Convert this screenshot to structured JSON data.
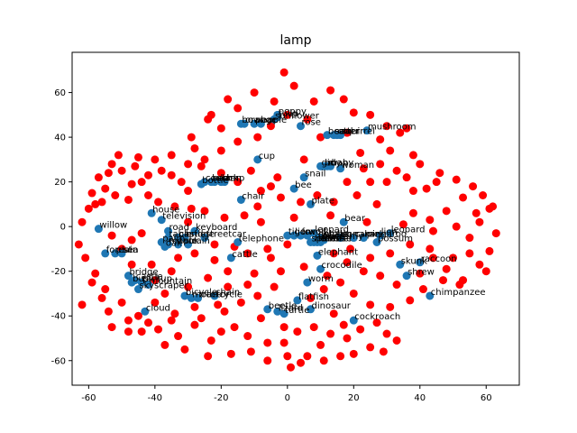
{
  "chart_data": {
    "type": "scatter",
    "title": "lamp",
    "xlabel": "",
    "ylabel": "",
    "xlim": [
      -65,
      70
    ],
    "ylim": [
      -71,
      78
    ],
    "xticks": [
      -60,
      -40,
      -20,
      0,
      20,
      40,
      60
    ],
    "yticks": [
      -60,
      -40,
      -20,
      0,
      20,
      40,
      60
    ],
    "grid": false,
    "colors": {
      "labeled": "#1f77b4",
      "unlabeled": "#ff0000"
    },
    "labeled_points": [
      {
        "label": "mushroom",
        "x": 24,
        "y": 43
      },
      {
        "label": "sunflower",
        "x": -4,
        "y": 48
      },
      {
        "label": "poppy",
        "x": -3,
        "y": 50
      },
      {
        "label": "tulip",
        "x": -3,
        "y": 49
      },
      {
        "label": "rose",
        "x": 4,
        "y": 45
      },
      {
        "label": "bowl",
        "x": -14,
        "y": 46
      },
      {
        "label": "orange",
        "x": -13,
        "y": 46
      },
      {
        "label": "pear",
        "x": -10,
        "y": 46
      },
      {
        "label": "apple",
        "x": -8,
        "y": 46
      },
      {
        "label": "beaver",
        "x": 12,
        "y": 41
      },
      {
        "label": "seal",
        "x": 14,
        "y": 41
      },
      {
        "label": "otter",
        "x": 15,
        "y": 41
      },
      {
        "label": "squirrel",
        "x": 16,
        "y": 41
      },
      {
        "label": "cup",
        "x": -9,
        "y": 30
      },
      {
        "label": "girl",
        "x": 10,
        "y": 27
      },
      {
        "label": "boy",
        "x": 11,
        "y": 27
      },
      {
        "label": "man",
        "x": 12,
        "y": 27
      },
      {
        "label": "baby",
        "x": 13,
        "y": 27
      },
      {
        "label": "woman",
        "x": 16,
        "y": 26
      },
      {
        "label": "snail",
        "x": 5,
        "y": 22
      },
      {
        "label": "bee",
        "x": 2,
        "y": 17
      },
      {
        "label": "bottle",
        "x": -26,
        "y": 19
      },
      {
        "label": "couch",
        "x": -25,
        "y": 20
      },
      {
        "label": "bed",
        "x": -23,
        "y": 20
      },
      {
        "label": "clock",
        "x": -22,
        "y": 20
      },
      {
        "label": "lamp",
        "x": -20,
        "y": 20
      },
      {
        "label": "can",
        "x": -19,
        "y": 20
      },
      {
        "label": "chair",
        "x": -14,
        "y": 12
      },
      {
        "label": "plate",
        "x": 7,
        "y": 10
      },
      {
        "label": "house",
        "x": -41,
        "y": 6
      },
      {
        "label": "television",
        "x": -38,
        "y": 3
      },
      {
        "label": "willow",
        "x": -57,
        "y": -1
      },
      {
        "label": "road",
        "x": -36,
        "y": -2
      },
      {
        "label": "keyboard",
        "x": -28,
        "y": -2
      },
      {
        "label": "table",
        "x": -36,
        "y": -5
      },
      {
        "label": "castle",
        "x": -33,
        "y": -5
      },
      {
        "label": "bridge",
        "x": -31,
        "y": -5
      },
      {
        "label": "streetcar",
        "x": -25,
        "y": -5
      },
      {
        "label": "palm",
        "x": -38,
        "y": -7
      },
      {
        "label": "maple",
        "x": -36,
        "y": -8
      },
      {
        "label": "oak",
        "x": -37,
        "y": -9
      },
      {
        "label": "tank",
        "x": -33,
        "y": -8
      },
      {
        "label": "train",
        "x": -30,
        "y": -8
      },
      {
        "label": "telephone",
        "x": -15,
        "y": -7
      },
      {
        "label": "tiger",
        "x": 0,
        "y": -4
      },
      {
        "label": "lion",
        "x": 2,
        "y": -4
      },
      {
        "label": "fox",
        "x": 4,
        "y": -4
      },
      {
        "label": "wolf",
        "x": 6,
        "y": -4
      },
      {
        "label": "leopard",
        "x": 8,
        "y": -3
      },
      {
        "label": "dolphin",
        "x": 9,
        "y": -5
      },
      {
        "label": "shark",
        "x": 9,
        "y": -6
      },
      {
        "label": "whale",
        "x": 10,
        "y": -5
      },
      {
        "label": "butterfly",
        "x": 11,
        "y": -6
      },
      {
        "label": "spider",
        "x": 7,
        "y": -7
      },
      {
        "label": "hamster",
        "x": 8,
        "y": -7
      },
      {
        "label": "rabbit",
        "x": 9,
        "y": -7
      },
      {
        "label": "mouse",
        "x": 10,
        "y": -7
      },
      {
        "label": "bear",
        "x": 17,
        "y": 2
      },
      {
        "label": "porcupine",
        "x": 16,
        "y": -5
      },
      {
        "label": "camel",
        "x": 20,
        "y": -5
      },
      {
        "label": "kangaroo",
        "x": 23,
        "y": -5
      },
      {
        "label": "possum",
        "x": 27,
        "y": -7
      },
      {
        "label": "lion",
        "x": 28,
        "y": -4
      },
      {
        "label": "leopard",
        "x": 31,
        "y": -3
      },
      {
        "label": "elephant",
        "x": 9,
        "y": -13
      },
      {
        "label": "cattle",
        "x": -17,
        "y": -14
      },
      {
        "label": "crocodile",
        "x": 10,
        "y": -19
      },
      {
        "label": "forest",
        "x": -55,
        "y": -12
      },
      {
        "label": "plain",
        "x": -52,
        "y": -12
      },
      {
        "label": "sea",
        "x": -50,
        "y": -12
      },
      {
        "label": "raccoon",
        "x": 40,
        "y": -16
      },
      {
        "label": "skunk",
        "x": 34,
        "y": -17
      },
      {
        "label": "shrew",
        "x": 36,
        "y": -22
      },
      {
        "label": "worm",
        "x": 6,
        "y": -25
      },
      {
        "label": "bridge",
        "x": -48,
        "y": -22
      },
      {
        "label": "castle",
        "x": -46,
        "y": -24
      },
      {
        "label": "bus",
        "x": -47,
        "y": -25
      },
      {
        "label": "pickup",
        "x": -44,
        "y": -25
      },
      {
        "label": "mountain",
        "x": -42,
        "y": -26
      },
      {
        "label": "skyscraper",
        "x": -45,
        "y": -28
      },
      {
        "label": "chimpanzee",
        "x": 43,
        "y": -31
      },
      {
        "label": "flatfish",
        "x": 3,
        "y": -33
      },
      {
        "label": "cloud",
        "x": -43,
        "y": -38
      },
      {
        "label": "bicycle",
        "x": -31,
        "y": -31
      },
      {
        "label": "motorcycle",
        "x": -29,
        "y": -32
      },
      {
        "label": "tractor",
        "x": -27,
        "y": -32
      },
      {
        "label": "chain",
        "x": -22,
        "y": -31
      },
      {
        "label": "beetle",
        "x": -6,
        "y": -37
      },
      {
        "label": "lizard",
        "x": -3,
        "y": -38
      },
      {
        "label": "dinosaur",
        "x": 7,
        "y": -37
      },
      {
        "label": "turtle",
        "x": -1,
        "y": -39
      },
      {
        "label": "cockroach",
        "x": 20,
        "y": -42
      }
    ],
    "unlabeled_points": [
      [
        -1,
        69
      ],
      [
        2,
        63
      ],
      [
        13,
        61
      ],
      [
        -18,
        57
      ],
      [
        -4,
        56
      ],
      [
        17,
        57
      ],
      [
        20,
        51
      ],
      [
        25,
        50
      ],
      [
        34,
        42
      ],
      [
        -24,
        48
      ],
      [
        -23,
        50
      ],
      [
        10,
        40
      ],
      [
        18,
        42
      ],
      [
        28,
        39
      ],
      [
        31,
        34
      ],
      [
        38,
        32
      ],
      [
        -29,
        40
      ],
      [
        -28,
        35
      ],
      [
        -42,
        23
      ],
      [
        -46,
        27
      ],
      [
        -50,
        25
      ],
      [
        -53,
        28
      ],
      [
        -55,
        17
      ],
      [
        -56,
        11
      ],
      [
        -58,
        10
      ],
      [
        -48,
        12
      ],
      [
        -42,
        14
      ],
      [
        -32,
        20
      ],
      [
        -30,
        16
      ],
      [
        -11,
        25
      ],
      [
        -5,
        18
      ],
      [
        -3,
        22
      ],
      [
        5,
        30
      ],
      [
        22,
        33
      ],
      [
        25,
        20
      ],
      [
        30,
        20
      ],
      [
        36,
        22
      ],
      [
        38,
        16
      ],
      [
        42,
        17
      ],
      [
        45,
        20
      ],
      [
        51,
        21
      ],
      [
        56,
        18
      ],
      [
        59,
        14
      ],
      [
        61,
        8
      ],
      [
        48,
        7
      ],
      [
        43,
        3
      ],
      [
        38,
        6
      ],
      [
        27,
        10
      ],
      [
        21,
        14
      ],
      [
        14,
        11
      ],
      [
        9,
        14
      ],
      [
        -9,
        9
      ],
      [
        -13,
        5
      ],
      [
        -25,
        7
      ],
      [
        -30,
        2
      ],
      [
        -44,
        -3
      ],
      [
        -47,
        -6
      ],
      [
        -53,
        -4
      ],
      [
        -50,
        -10
      ],
      [
        -47,
        -17
      ],
      [
        -41,
        -17
      ],
      [
        -33,
        -14
      ],
      [
        -22,
        -15
      ],
      [
        -18,
        -20
      ],
      [
        -10,
        -21
      ],
      [
        -5,
        -14
      ],
      [
        0,
        -8
      ],
      [
        14,
        -12
      ],
      [
        19,
        -10
      ],
      [
        25,
        -14
      ],
      [
        31,
        -12
      ],
      [
        37,
        -8
      ],
      [
        43,
        -10
      ],
      [
        50,
        -14
      ],
      [
        55,
        -12
      ],
      [
        60,
        -20
      ],
      [
        52,
        -26
      ],
      [
        47,
        -24
      ],
      [
        41,
        -28
      ],
      [
        37,
        -33
      ],
      [
        31,
        -36
      ],
      [
        25,
        -35
      ],
      [
        20,
        -30
      ],
      [
        16,
        -25
      ],
      [
        11,
        -28
      ],
      [
        7,
        -32
      ],
      [
        14,
        -39
      ],
      [
        17,
        -44
      ],
      [
        22,
        -46
      ],
      [
        27,
        -43
      ],
      [
        30,
        -48
      ],
      [
        18,
        -50
      ],
      [
        10,
        -53
      ],
      [
        6,
        -58
      ],
      [
        0,
        -58
      ],
      [
        -6,
        -52
      ],
      [
        -12,
        -49
      ],
      [
        -17,
        -57
      ],
      [
        -23,
        -51
      ],
      [
        -28,
        -44
      ],
      [
        -33,
        -49
      ],
      [
        -39,
        -46
      ],
      [
        -45,
        -40
      ],
      [
        -50,
        -34
      ],
      [
        -56,
        -32
      ],
      [
        -59,
        -25
      ],
      [
        -62,
        -35
      ],
      [
        -54,
        -38
      ],
      [
        -40,
        -34
      ],
      [
        -34,
        -39
      ],
      [
        -26,
        -41
      ],
      [
        -19,
        -38
      ],
      [
        -14,
        -34
      ],
      [
        -9,
        -31
      ],
      [
        -4,
        -27
      ],
      [
        -1,
        -45
      ],
      [
        3,
        -47
      ],
      [
        8,
        -45
      ],
      [
        13,
        -48
      ],
      [
        1,
        -63
      ],
      [
        4,
        -61
      ],
      [
        -1,
        -52
      ],
      [
        11,
        -60
      ],
      [
        16,
        -58
      ],
      [
        20,
        -57
      ],
      [
        25,
        -54
      ],
      [
        29,
        -56
      ],
      [
        33,
        -51
      ],
      [
        -6,
        -60
      ],
      [
        -11,
        -56
      ],
      [
        -20,
        -47
      ],
      [
        -24,
        -58
      ],
      [
        -31,
        -55
      ],
      [
        -37,
        -53
      ],
      [
        -44,
        -47
      ],
      [
        -48,
        -42
      ],
      [
        -55,
        -28
      ],
      [
        -58,
        -21
      ],
      [
        -61,
        -14
      ],
      [
        -63,
        -8
      ],
      [
        -62,
        2
      ],
      [
        -60,
        8
      ],
      [
        -59,
        15
      ],
      [
        -57,
        22
      ],
      [
        -54,
        24
      ],
      [
        -44,
        20
      ],
      [
        -38,
        25
      ],
      [
        -35,
        23
      ],
      [
        -26,
        27
      ],
      [
        -20,
        24
      ],
      [
        -15,
        20
      ],
      [
        -8,
        16
      ],
      [
        -2,
        13
      ],
      [
        4,
        11
      ],
      [
        18,
        20
      ],
      [
        23,
        26
      ],
      [
        28,
        28
      ],
      [
        33,
        25
      ],
      [
        40,
        28
      ],
      [
        46,
        24
      ],
      [
        53,
        13
      ],
      [
        57,
        6
      ],
      [
        62,
        9
      ],
      [
        63,
        -3
      ],
      [
        61,
        -11
      ],
      [
        58,
        -17
      ],
      [
        53,
        -24
      ],
      [
        48,
        -19
      ],
      [
        44,
        -14
      ],
      [
        40,
        -21
      ],
      [
        33,
        -26
      ],
      [
        28,
        -22
      ],
      [
        23,
        -20
      ],
      [
        18,
        -16
      ],
      [
        12,
        -22
      ],
      [
        5,
        -18
      ],
      [
        -2,
        -20
      ],
      [
        -6,
        -10
      ],
      [
        -12,
        -12
      ],
      [
        -16,
        -9
      ],
      [
        -22,
        -8
      ],
      [
        -28,
        -12
      ],
      [
        -35,
        -20
      ],
      [
        -40,
        -24
      ],
      [
        -37,
        -30
      ],
      [
        -30,
        -27
      ],
      [
        -24,
        -23
      ],
      [
        -18,
        -27
      ],
      [
        -12,
        -26
      ],
      [
        -8,
        -41
      ],
      [
        -16,
        -45
      ],
      [
        -21,
        -35
      ],
      [
        -28,
        -36
      ],
      [
        -35,
        -42
      ],
      [
        -42,
        -43
      ],
      [
        -48,
        -47
      ],
      [
        -53,
        -45
      ],
      [
        -5,
        45
      ],
      [
        0,
        50
      ],
      [
        6,
        48
      ],
      [
        -9,
        40
      ],
      [
        -15,
        38
      ],
      [
        -20,
        34
      ],
      [
        -25,
        30
      ],
      [
        -30,
        28
      ],
      [
        -35,
        32
      ],
      [
        -40,
        30
      ],
      [
        -45,
        31
      ],
      [
        -51,
        32
      ],
      [
        -47,
        19
      ],
      [
        -52,
        14
      ],
      [
        -39,
        11
      ],
      [
        -34,
        9
      ],
      [
        -29,
        8
      ],
      [
        -19,
        4
      ],
      [
        -8,
        2
      ],
      [
        2,
        4
      ],
      [
        13,
        5
      ],
      [
        24,
        2
      ],
      [
        35,
        1
      ],
      [
        44,
        -2
      ],
      [
        51,
        0
      ],
      [
        55,
        -5
      ],
      [
        58,
        2
      ],
      [
        36,
        44
      ],
      [
        30,
        45
      ],
      [
        8,
        56
      ],
      [
        -10,
        60
      ],
      [
        -15,
        53
      ],
      [
        -20,
        44
      ]
    ]
  }
}
